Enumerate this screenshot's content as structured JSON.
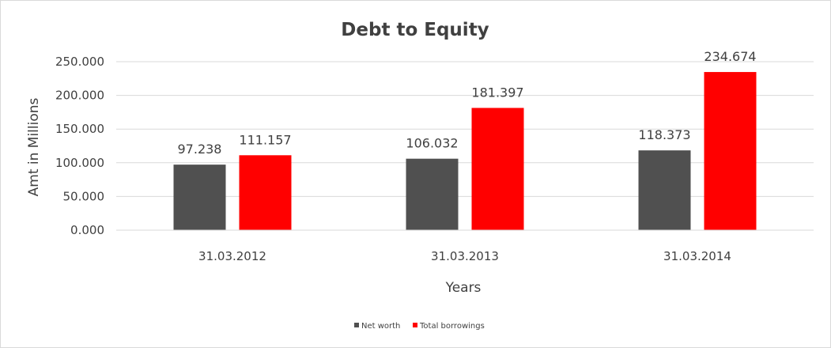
{
  "chart_data": {
    "type": "bar",
    "title": "Debt to Equity",
    "xlabel": "Years",
    "ylabel": "Amt in Millions",
    "categories": [
      "31.03.2012",
      "31.03.2013",
      "31.03.2014"
    ],
    "series": [
      {
        "name": "Net worth",
        "values": [
          97.238,
          106.032,
          118.373
        ],
        "color": "#505050"
      },
      {
        "name": "Total borrowings",
        "values": [
          111.157,
          181.397,
          234.674
        ],
        "color": "#ff0000"
      }
    ],
    "ylim": [
      0,
      250
    ],
    "yticks": [
      "0.000",
      "50.000",
      "100.000",
      "150.000",
      "200.000",
      "250.000"
    ],
    "data_labels": [
      [
        "97.238",
        "106.032",
        "118.373"
      ],
      [
        "111.157",
        "181.397",
        "234.674"
      ]
    ],
    "grid": true,
    "legend_position": "bottom"
  }
}
